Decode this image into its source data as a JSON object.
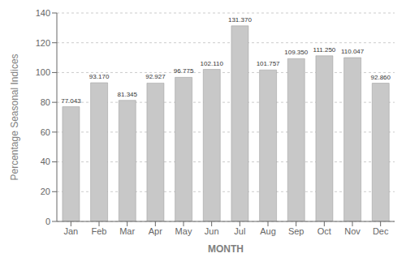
{
  "chart_data": {
    "type": "bar",
    "categories": [
      "Jan",
      "Feb",
      "Mar",
      "Apr",
      "May",
      "Jun",
      "Jul",
      "Aug",
      "Sep",
      "Oct",
      "Nov",
      "Dec"
    ],
    "values": [
      77.043,
      93.17,
      81.345,
      92.927,
      96.775,
      102.11,
      131.37,
      101.757,
      109.35,
      111.25,
      110.047,
      92.86
    ],
    "value_labels": [
      "77.043",
      "93.170",
      "81.345",
      "92.927",
      "96.775",
      "102.110",
      "131.370",
      "101.757",
      "109.350",
      "111.250",
      "110.047",
      "92.860"
    ],
    "data_labels": true,
    "color": "#c8c8c8",
    "xlabel": "MONTH",
    "ylabel": "Percentage Seasonal Indices",
    "ylim": [
      0,
      140
    ],
    "yticks": [
      0,
      20,
      40,
      60,
      80,
      100,
      120,
      140
    ],
    "grid": true
  }
}
